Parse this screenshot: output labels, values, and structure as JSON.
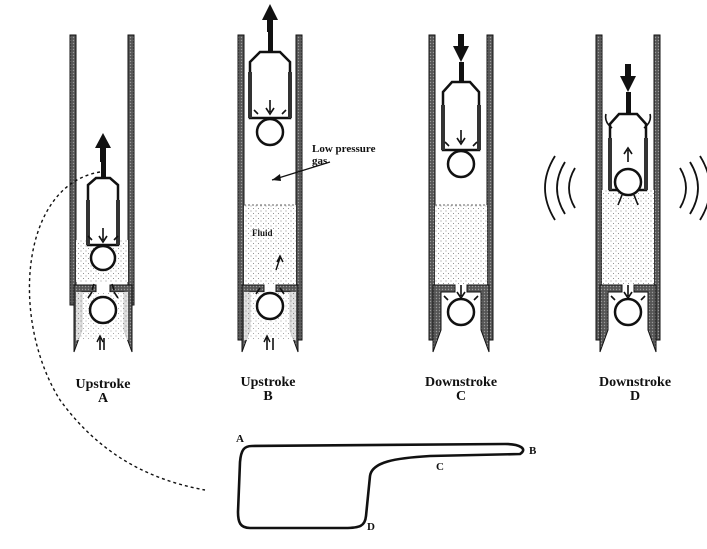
{
  "panels": [
    {
      "stroke": "Upstroke",
      "letter": "A"
    },
    {
      "stroke": "Upstroke",
      "letter": "B"
    },
    {
      "stroke": "Downstroke",
      "letter": "C"
    },
    {
      "stroke": "Downstroke",
      "letter": "D"
    }
  ],
  "annotations": {
    "low_pressure": "Low pressure",
    "gas": "gas",
    "fluid": "Fluid"
  },
  "card_points": {
    "a": "A",
    "b": "B",
    "c": "C",
    "d": "D"
  },
  "colors": {
    "ink": "#111111",
    "stipple": "#9a9a9a",
    "shade": "#6a6a6a"
  }
}
